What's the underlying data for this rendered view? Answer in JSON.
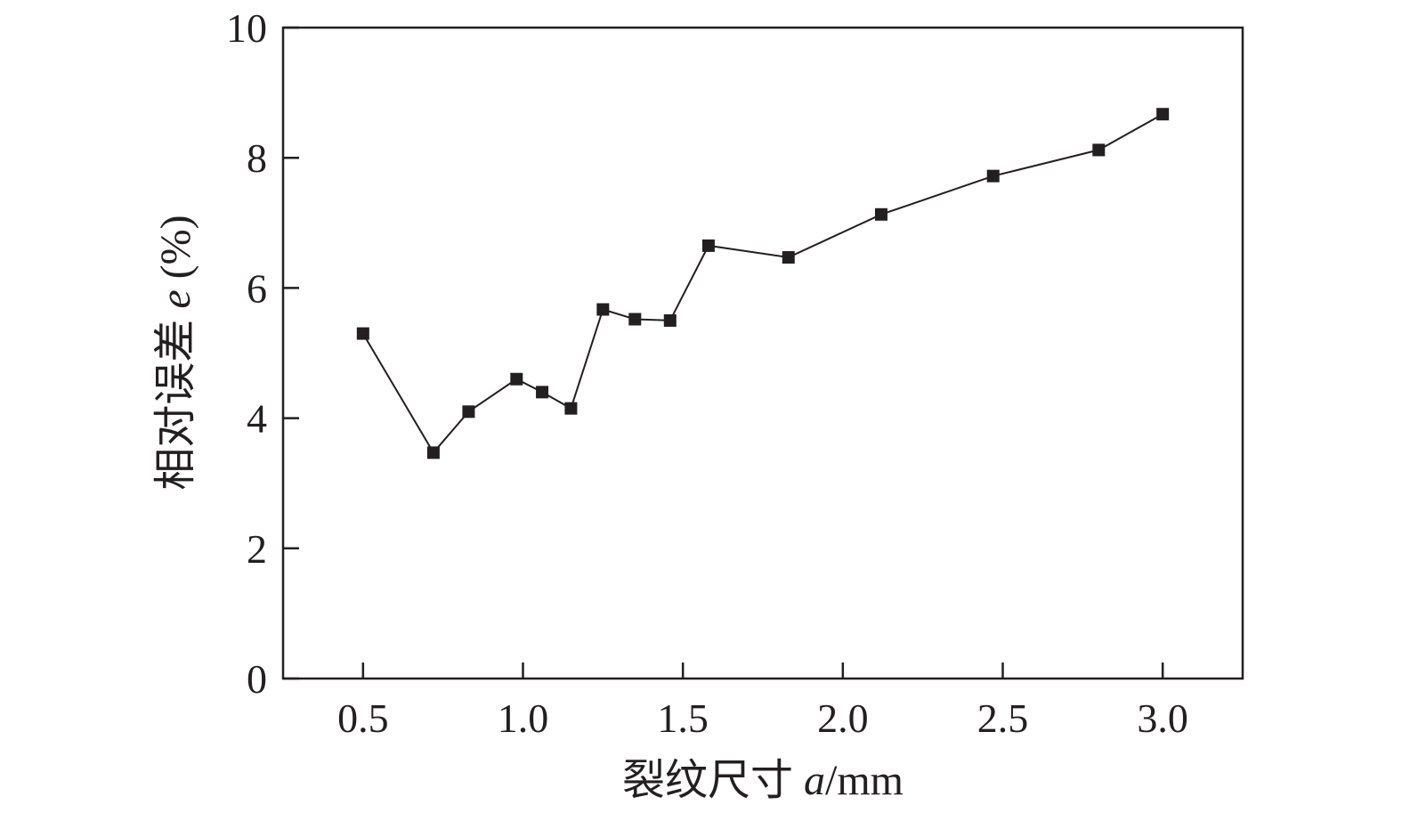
{
  "chart_data": {
    "type": "line",
    "xlabel": "裂纹尺寸 a/mm",
    "xlabel_parts": {
      "prefix": "裂纹尺寸 ",
      "italic": "a",
      "suffix": "/mm"
    },
    "ylabel": "相对误差 e (%)",
    "ylabel_parts": {
      "prefix": "相对误差 ",
      "italic": "e",
      "suffix": " (%)"
    },
    "xlim": [
      0.25,
      3.25
    ],
    "ylim": [
      0,
      10
    ],
    "xticks": [
      {
        "value": 0.5,
        "label": "0.5"
      },
      {
        "value": 1.0,
        "label": "1.0"
      },
      {
        "value": 1.5,
        "label": "1.5"
      },
      {
        "value": 2.0,
        "label": "2.0"
      },
      {
        "value": 2.5,
        "label": "2.5"
      },
      {
        "value": 3.0,
        "label": "3.0"
      }
    ],
    "yticks": [
      {
        "value": 0,
        "label": "0"
      },
      {
        "value": 2,
        "label": "2"
      },
      {
        "value": 4,
        "label": "4"
      },
      {
        "value": 6,
        "label": "6"
      },
      {
        "value": 8,
        "label": "8"
      },
      {
        "value": 10,
        "label": "10"
      }
    ],
    "grid": false,
    "marker": "square",
    "color": "#231f20",
    "series": [
      {
        "x": [
          0.5,
          0.72,
          0.83,
          0.98,
          1.06,
          1.15,
          1.25,
          1.35,
          1.46,
          1.58,
          1.83,
          2.12,
          2.47,
          2.8,
          3.0
        ],
        "y": [
          5.3,
          3.47,
          4.1,
          4.6,
          4.4,
          4.15,
          5.67,
          5.52,
          5.5,
          6.65,
          6.47,
          7.13,
          7.72,
          8.12,
          8.67
        ]
      }
    ]
  }
}
